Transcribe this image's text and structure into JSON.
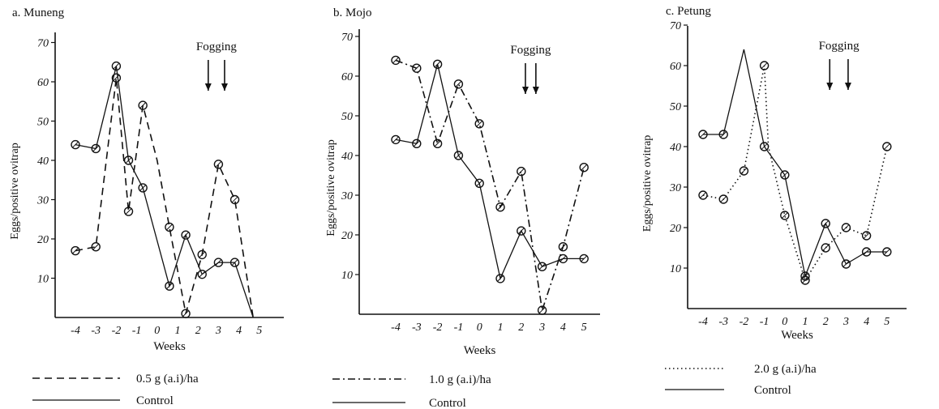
{
  "chart_data": [
    {
      "type": "line",
      "title": "a. Muneng",
      "xlabel": "Weeks",
      "ylabel": "Eggs/positive ovitrap",
      "x": [
        -4,
        -3,
        -2,
        -1,
        0,
        1,
        2,
        3,
        4,
        5
      ],
      "xticks": [
        "-4",
        "-3",
        "-2",
        "-1",
        "0",
        "1",
        "2",
        "3",
        "4",
        "5"
      ],
      "ylim": [
        0,
        70
      ],
      "yticks": [
        "10",
        "20",
        "30",
        "40",
        "50",
        "60",
        "70"
      ],
      "annotation": "Fogging",
      "fogging_weeks": [
        2.5,
        3.3
      ],
      "series": [
        {
          "name": "0.5 g (a.i)/ha",
          "style": "dashed",
          "x": [
            -4,
            -3,
            -2,
            -1.4,
            -0.7,
            0,
            0.6,
            1.4,
            2.2,
            3,
            3.8,
            4.7
          ],
          "values": [
            17,
            18,
            61,
            27,
            54,
            40,
            23,
            1,
            16,
            39,
            30,
            0
          ],
          "marker_mask": [
            1,
            1,
            1,
            1,
            1,
            0,
            1,
            1,
            1,
            1,
            1,
            0
          ]
        },
        {
          "name": "Control",
          "style": "solid",
          "x": [
            -4,
            -3,
            -2,
            -1.4,
            -0.7,
            0.6,
            1.4,
            2.2,
            3,
            3.8,
            4.7
          ],
          "values": [
            44,
            43,
            64,
            40,
            33,
            8,
            21,
            11,
            14,
            14,
            0
          ],
          "marker_mask": [
            1,
            1,
            1,
            1,
            1,
            1,
            1,
            1,
            1,
            1,
            0
          ]
        }
      ]
    },
    {
      "type": "line",
      "title": "b. Mojo",
      "xlabel": "Weeks",
      "ylabel": "Eggs/positive ovitrap",
      "x": [
        -4,
        -3,
        -2,
        -1,
        0,
        1,
        2,
        3,
        4,
        5
      ],
      "xticks": [
        "-4",
        "-3",
        "-2",
        "-1",
        "0",
        "1",
        "2",
        "3",
        "4",
        "5"
      ],
      "ylim": [
        0,
        70
      ],
      "yticks": [
        "10",
        "20",
        "30",
        "40",
        "50",
        "60",
        "70"
      ],
      "annotation": "Fogging",
      "fogging_weeks": [
        2.2,
        2.7
      ],
      "series": [
        {
          "name": "1.0 g (a.i)/ha",
          "style": "dashdot",
          "x": [
            -4,
            -3,
            -2,
            -1,
            0,
            1,
            2,
            3,
            4,
            5
          ],
          "values": [
            64,
            62,
            43,
            58,
            48,
            27,
            36,
            1,
            17,
            37
          ]
        },
        {
          "name": "Control",
          "style": "solid",
          "x": [
            -4,
            -3,
            -2,
            -1,
            0,
            1,
            2,
            3,
            4,
            5
          ],
          "values": [
            44,
            43,
            63,
            40,
            33,
            9,
            21,
            12,
            14,
            14
          ]
        }
      ]
    },
    {
      "type": "line",
      "title": "c. Petung",
      "xlabel": "Weeks",
      "ylabel": "Eggs/positive ovitrap",
      "x": [
        -4,
        -3,
        -2,
        -1,
        0,
        1,
        2,
        3,
        4,
        5
      ],
      "xticks": [
        "-4",
        "-3",
        "-2",
        "-1",
        "0",
        "1",
        "2",
        "3",
        "4",
        "5"
      ],
      "ylim": [
        0,
        70
      ],
      "yticks": [
        "10",
        "20",
        "30",
        "40",
        "50",
        "60",
        "70"
      ],
      "annotation": "Fogging",
      "fogging_weeks": [
        2.2,
        3.1
      ],
      "series": [
        {
          "name": "2.0 g (a.i)/ha",
          "style": "dotted",
          "x": [
            -4,
            -3,
            -2,
            -1,
            -0.8,
            0,
            1,
            2,
            3,
            4,
            5
          ],
          "values": [
            28,
            27,
            34,
            60,
            40,
            23,
            7,
            15,
            20,
            18,
            40
          ],
          "marker_mask": [
            1,
            1,
            1,
            1,
            0,
            1,
            1,
            1,
            1,
            1,
            1
          ]
        },
        {
          "name": "Control",
          "style": "solid",
          "x": [
            -4,
            -3,
            -2,
            -1,
            0,
            1,
            2,
            3,
            4,
            5
          ],
          "values": [
            43,
            43,
            64,
            40,
            33,
            8,
            21,
            11,
            14,
            14
          ],
          "marker_mask": [
            1,
            1,
            0,
            1,
            1,
            1,
            1,
            1,
            1,
            1
          ]
        }
      ]
    }
  ]
}
